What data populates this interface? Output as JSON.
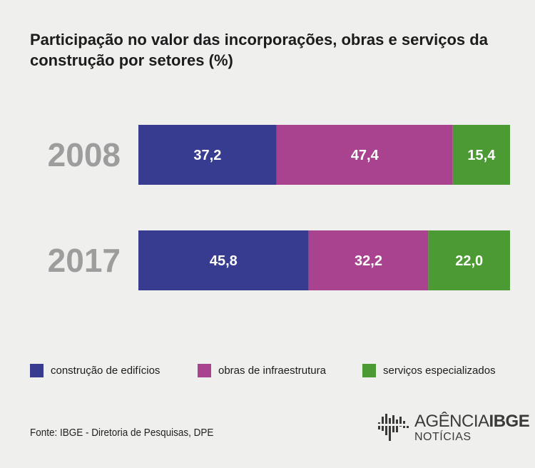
{
  "title": "Participação no valor das incorporações, obras e serviços da construção por setores (%)",
  "chart_data": {
    "type": "bar",
    "orientation": "horizontal",
    "stacked": true,
    "categories": [
      "2008",
      "2017"
    ],
    "series": [
      {
        "name": "construção de edifícios",
        "color": "#383c90",
        "values": [
          37.2,
          45.8
        ],
        "labels": [
          "37,2",
          "45,8"
        ]
      },
      {
        "name": "obras de infraestrutura",
        "color": "#a9438f",
        "values": [
          47.4,
          32.2
        ],
        "labels": [
          "47,4",
          "32,2"
        ]
      },
      {
        "name": "serviços especializados",
        "color": "#4b9a34",
        "values": [
          15.4,
          22.0
        ],
        "labels": [
          "15,4",
          "22,0"
        ]
      }
    ],
    "xlim": [
      0,
      100
    ],
    "legend_position": "bottom"
  },
  "source": "Fonte: IBGE - Diretoria de Pesquisas, DPE",
  "logo": {
    "word1": "AGÊNCIA",
    "word2": "IBGE",
    "sub": "NOTÍCIAS"
  }
}
